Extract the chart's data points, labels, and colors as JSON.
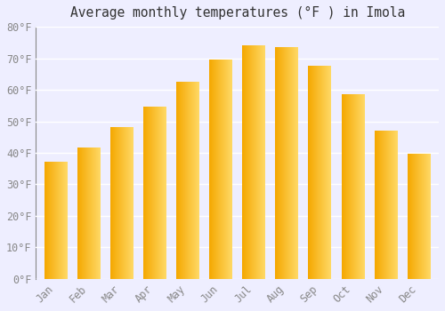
{
  "title": "Average monthly temperatures (°F ) in Imola",
  "months": [
    "Jan",
    "Feb",
    "Mar",
    "Apr",
    "May",
    "Jun",
    "Jul",
    "Aug",
    "Sep",
    "Oct",
    "Nov",
    "Dec"
  ],
  "values": [
    37,
    41.5,
    48,
    54.5,
    62.5,
    69.5,
    74,
    73.5,
    67.5,
    58.5,
    47,
    39.5
  ],
  "bar_color_left": "#F5A800",
  "bar_color_right": "#FFD966",
  "background_color": "#eeeeff",
  "plot_bg_color": "#eeeeff",
  "ylim": [
    0,
    80
  ],
  "yticks": [
    0,
    10,
    20,
    30,
    40,
    50,
    60,
    70,
    80
  ],
  "grid_color": "#ffffff",
  "title_fontsize": 10.5,
  "tick_fontsize": 8.5,
  "font_family": "monospace",
  "bar_width": 0.7
}
